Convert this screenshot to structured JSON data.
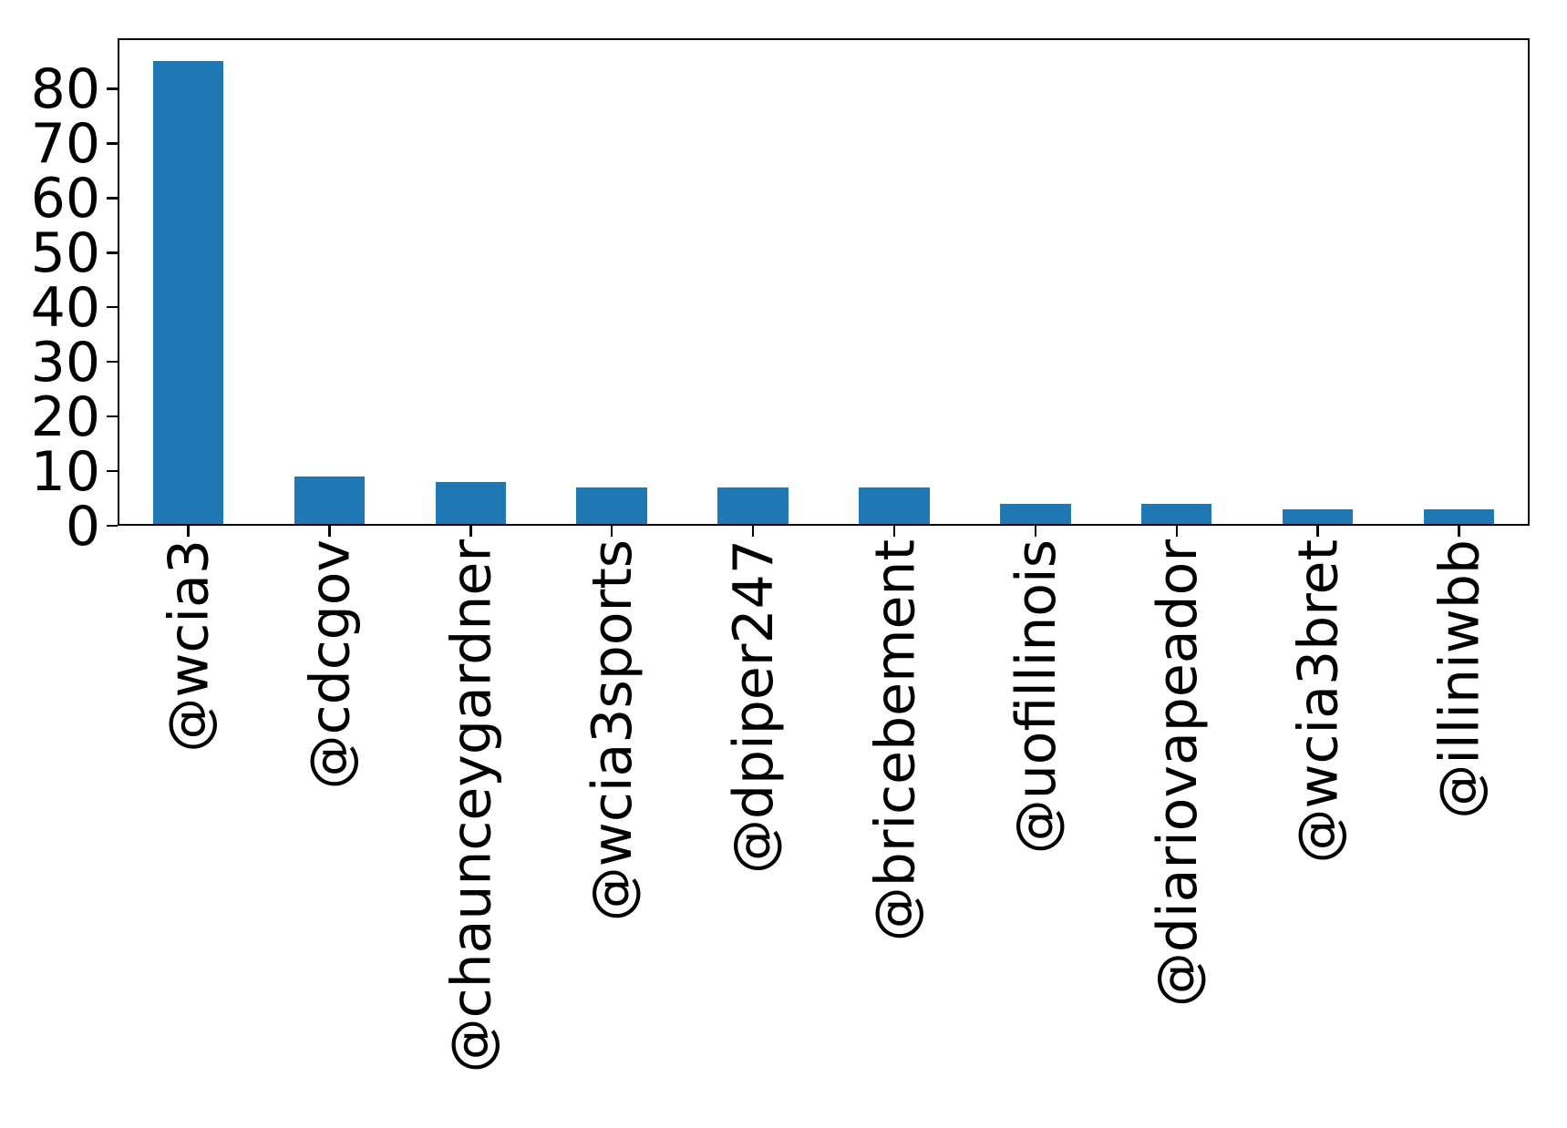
{
  "chart_data": {
    "type": "bar",
    "categories": [
      "@wcia3",
      "@cdcgov",
      "@chaunceygardner",
      "@wcia3sports",
      "@dpiper247",
      "@bricebement",
      "@uofillinois",
      "@diariovapeador",
      "@wcia3bret",
      "@illiniwbb"
    ],
    "values": [
      85,
      9,
      8,
      7,
      7,
      7,
      4,
      4,
      3,
      3
    ],
    "title": "",
    "xlabel": "",
    "ylabel": "",
    "yticks": [
      0,
      10,
      20,
      30,
      40,
      50,
      60,
      70,
      80
    ],
    "ylim": [
      0,
      89.25
    ],
    "bar_rel_width": 0.5,
    "x_tick_label_rotation": 90,
    "grid": false,
    "legend_position": null,
    "bar_color": "#1f77b4",
    "axis_color": "#000000",
    "background_color": "#ffffff"
  }
}
